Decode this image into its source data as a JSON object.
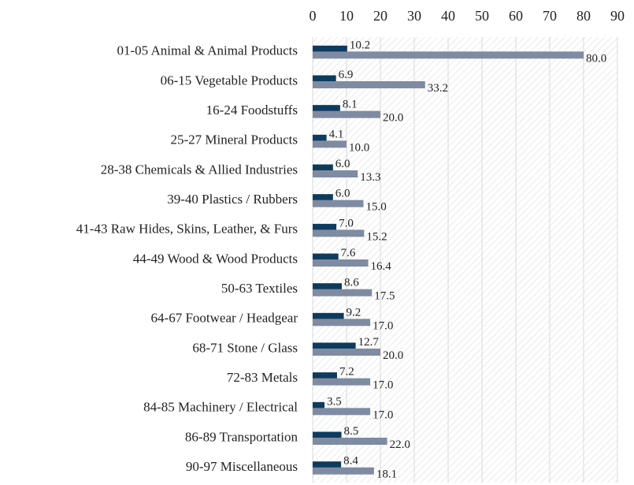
{
  "chart_data": {
    "type": "bar",
    "orientation": "horizontal",
    "categories": [
      "01-05  Animal & Animal Products",
      "06-15  Vegetable Products",
      "16-24  Foodstuffs",
      "25-27  Mineral Products",
      "28-38  Chemicals & Allied Industries",
      "39-40  Plastics / Rubbers",
      "41-43  Raw Hides, Skins, Leather, & Furs",
      "44-49  Wood & Wood Products",
      "50-63  Textiles",
      "64-67  Footwear / Headgear",
      "68-71  Stone / Glass",
      "72-83  Metals",
      "84-85  Machinery / Electrical",
      "86-89  Transportation",
      "90-97  Miscellaneous"
    ],
    "series": [
      {
        "color": "#0d3b5e",
        "values": [
          10.2,
          6.9,
          8.1,
          4.1,
          6.0,
          6.0,
          7.0,
          7.6,
          8.6,
          9.2,
          12.7,
          7.2,
          3.5,
          8.5,
          8.4
        ],
        "value_labels": [
          "10.2",
          "6.9",
          "8.1",
          "4.1",
          "6.0",
          "6.0",
          "7.0",
          "7.6",
          "8.6",
          "9.2",
          "12.7",
          "7.2",
          "3.5",
          "8.5",
          "8.4"
        ]
      },
      {
        "color": "#7f8ba2",
        "values": [
          80.0,
          33.2,
          20.0,
          10.0,
          13.3,
          15.0,
          15.2,
          16.4,
          17.5,
          17.0,
          20.0,
          17.0,
          17.0,
          22.0,
          18.1
        ],
        "value_labels": [
          "80.0",
          "33.2",
          "20.0",
          "10.0",
          "13.3",
          "15.0",
          "15.2",
          "16.4",
          "17.5",
          "17.0",
          "20.0",
          "17.0",
          "17.0",
          "22.0",
          "18.1"
        ]
      }
    ],
    "xlim": [
      0,
      90
    ],
    "xticks": [
      0,
      10,
      20,
      30,
      40,
      50,
      60,
      70,
      80,
      90
    ],
    "grid": true
  }
}
